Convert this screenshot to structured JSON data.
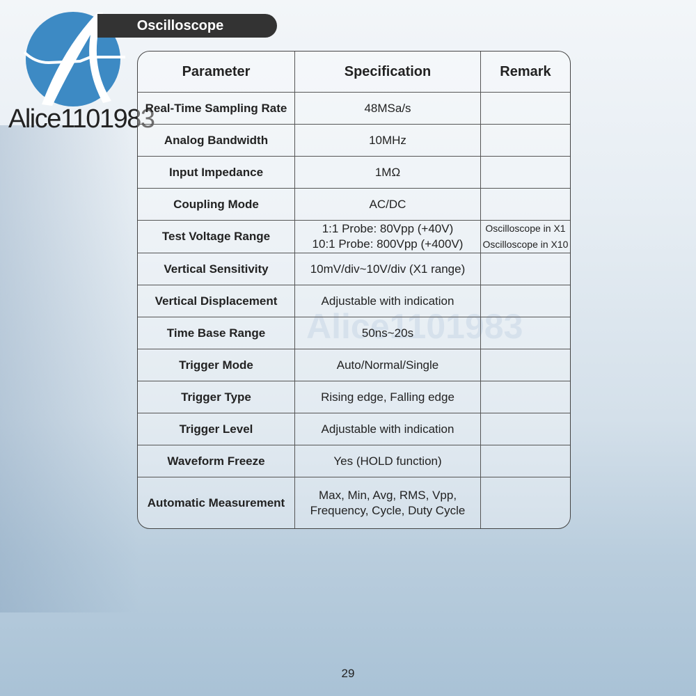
{
  "brand": {
    "name": "Alice1101983",
    "color": "#3d8ac4"
  },
  "section_title": "Oscilloscope",
  "table": {
    "headers": [
      "Parameter",
      "Specification",
      "Remark"
    ],
    "rows": [
      {
        "parameter": "Real-Time Sampling Rate",
        "spec": [
          "48MSa/s"
        ],
        "remark": []
      },
      {
        "parameter": "Analog Bandwidth",
        "spec": [
          "10MHz"
        ],
        "remark": []
      },
      {
        "parameter": "Input Impedance",
        "spec": [
          "1MΩ"
        ],
        "remark": []
      },
      {
        "parameter": "Coupling Mode",
        "spec": [
          "AC/DC"
        ],
        "remark": []
      },
      {
        "parameter": "Test Voltage Range",
        "spec": [
          "1:1 Probe: 80Vpp (+40V)",
          "10:1 Probe: 800Vpp (+400V)"
        ],
        "remark": [
          "Oscilloscope in X1",
          "Oscilloscope in X10"
        ]
      },
      {
        "parameter": "Vertical Sensitivity",
        "spec": [
          "10mV/div~10V/div (X1 range)"
        ],
        "remark": []
      },
      {
        "parameter": "Vertical Displacement",
        "spec": [
          "Adjustable with indication"
        ],
        "remark": []
      },
      {
        "parameter": "Time Base Range",
        "spec": [
          "50ns~20s"
        ],
        "remark": []
      },
      {
        "parameter": "Trigger Mode",
        "spec": [
          "Auto/Normal/Single"
        ],
        "remark": []
      },
      {
        "parameter": "Trigger Type",
        "spec": [
          "Rising edge, Falling edge"
        ],
        "remark": []
      },
      {
        "parameter": "Trigger Level",
        "spec": [
          "Adjustable with indication"
        ],
        "remark": []
      },
      {
        "parameter": "Waveform Freeze",
        "spec": [
          "Yes (HOLD function)"
        ],
        "remark": []
      },
      {
        "parameter": "Automatic Measurement",
        "spec": [
          "Max, Min, Avg, RMS, Vpp,",
          "Frequency, Cycle, Duty Cycle"
        ],
        "remark": []
      }
    ]
  },
  "watermark": "Alice1101983",
  "page_number": "29"
}
